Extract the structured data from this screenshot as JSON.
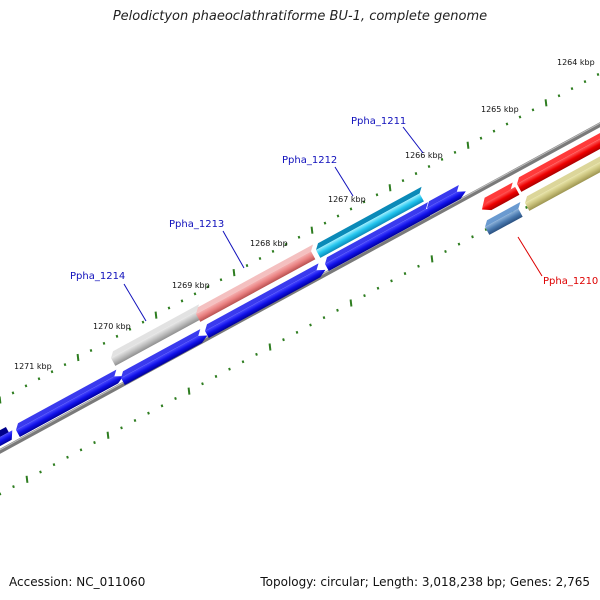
{
  "title": "Pelodictyon phaeoclathratiforme BU-1, complete genome",
  "footer": {
    "accession": "Accession: NC_011060",
    "topology": "Topology: circular; Length: 3,018,238 bp; Genes: 2,765"
  },
  "colors": {
    "backbone": "#7a7a7a",
    "ticks": "#2e7d20",
    "strand_forward": "#1a1aee",
    "label_blue": "#1010bb",
    "label_red": "#dd0000"
  },
  "scale_labels": [
    "1271 kbp",
    "1270 kbp",
    "1269 kbp",
    "1268 kbp",
    "1267 kbp",
    "1266 kbp",
    "1265 kbp",
    "1264 kbp"
  ],
  "gene_labels": [
    {
      "name": "Ppha_1214",
      "color": "#1010bb"
    },
    {
      "name": "Ppha_1213",
      "color": "#1010bb"
    },
    {
      "name": "Ppha_1212",
      "color": "#1010bb"
    },
    {
      "name": "Ppha_1211",
      "color": "#1010bb"
    },
    {
      "name": "Ppha_1210",
      "color": "#dd0000"
    }
  ]
}
